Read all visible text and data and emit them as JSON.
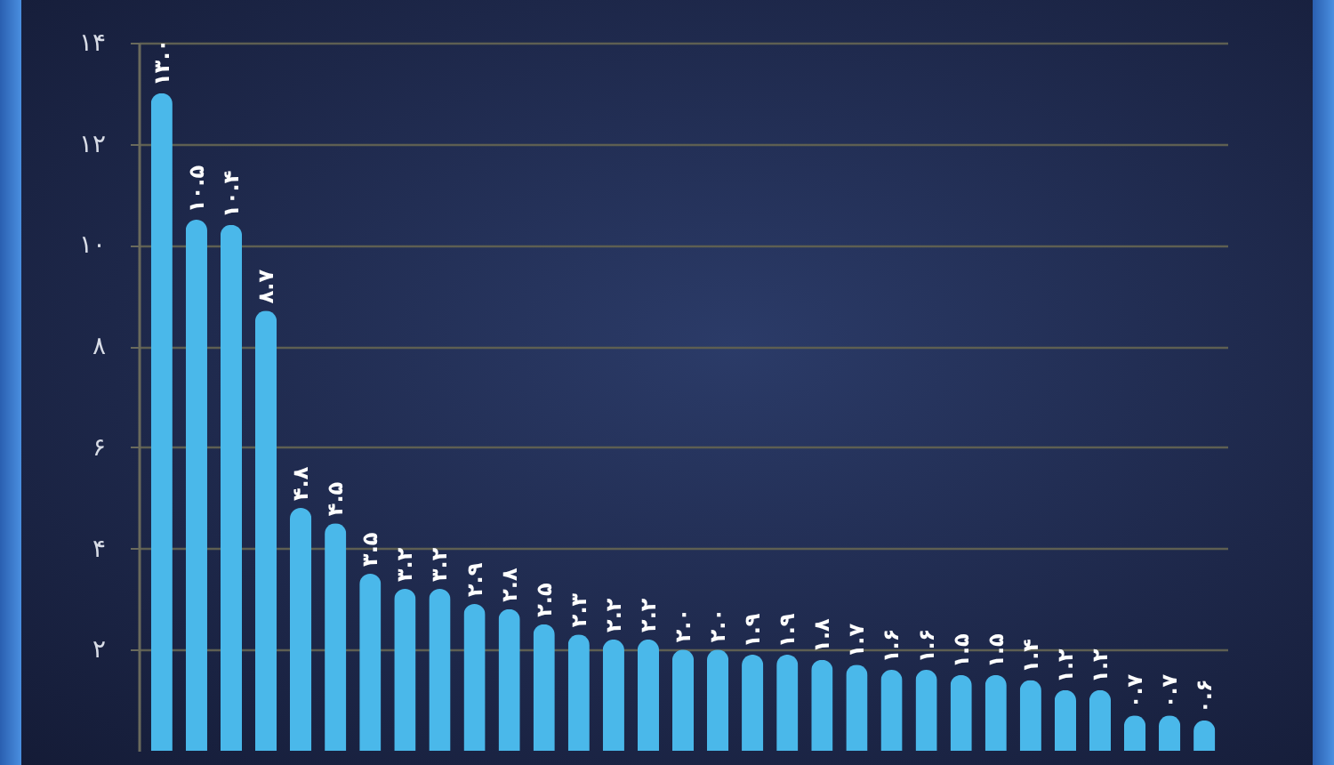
{
  "chart_data": {
    "type": "bar",
    "categories": [
      null,
      null,
      null,
      null,
      null,
      null,
      null,
      null,
      null,
      null,
      null,
      null,
      null,
      null,
      null,
      null,
      null,
      null,
      null,
      null,
      null,
      null,
      null,
      null,
      null,
      null,
      null,
      null,
      null,
      null,
      null
    ],
    "values": [
      13.0,
      10.5,
      10.4,
      8.7,
      4.8,
      4.5,
      3.5,
      3.2,
      3.2,
      2.9,
      2.8,
      2.5,
      2.3,
      2.2,
      2.2,
      2.0,
      2.0,
      1.9,
      1.9,
      1.8,
      1.7,
      1.6,
      1.6,
      1.5,
      1.5,
      1.4,
      1.2,
      1.2,
      0.7,
      0.7,
      0.6
    ],
    "value_labels": [
      "۱۳.۰",
      "۱۰.۵",
      "۱۰.۴",
      "۸.۷",
      "۴.۸",
      "۴.۵",
      "۳.۵",
      "۳.۲",
      "۳.۲",
      "۲.۹",
      "۲.۸",
      "۲.۵",
      "۲.۳",
      "۲.۲",
      "۲.۲",
      "۲.۰",
      "۲.۰",
      "۱.۹",
      "۱.۹",
      "۱.۸",
      "۱.۷",
      "۱.۶",
      "۱.۶",
      "۱.۵",
      "۱.۵",
      "۱.۴",
      "۱.۲",
      "۱.۲",
      "۰.۷",
      "۰.۷",
      "۰.۶"
    ],
    "color": "#4ab8ea",
    "ylim": [
      0,
      14
    ],
    "yticks": [
      {
        "value": 2,
        "label": "۲"
      },
      {
        "value": 4,
        "label": "۴"
      },
      {
        "value": 6,
        "label": "۶"
      },
      {
        "value": 8,
        "label": "۸"
      },
      {
        "value": 10,
        "label": "۱۰"
      },
      {
        "value": 12,
        "label": "۱۲"
      },
      {
        "value": 14,
        "label": "۱۴"
      }
    ],
    "grid": true,
    "tick_labels": "y"
  }
}
